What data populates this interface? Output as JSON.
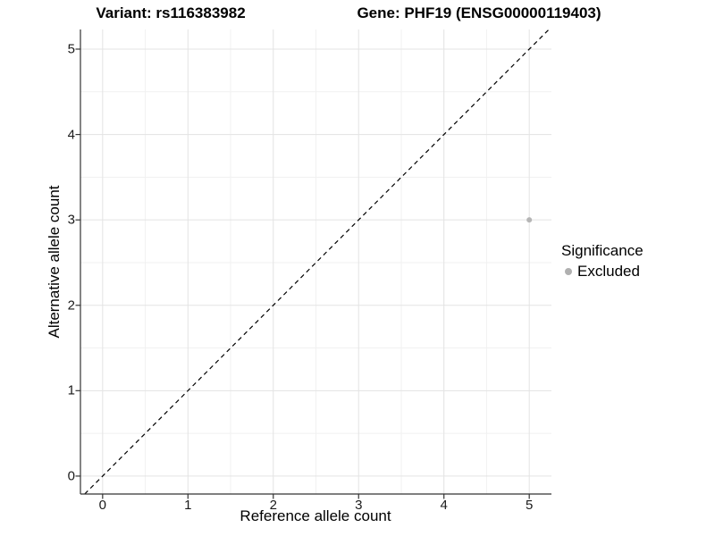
{
  "titles": {
    "variant": "Variant: rs116383982",
    "gene": "Gene: PHF19 (ENSG00000119403)"
  },
  "chart_data": {
    "type": "scatter",
    "xlabel": "Reference allele count",
    "ylabel": "Alternative allele count",
    "xlim": [
      -0.26,
      5.26
    ],
    "ylim": [
      -0.21,
      5.23
    ],
    "xticks": [
      0,
      1,
      2,
      3,
      4,
      5
    ],
    "yticks": [
      0,
      1,
      2,
      3,
      4,
      5
    ],
    "grid": true,
    "minor_grid": true,
    "points": [
      {
        "x": 5,
        "y": 3,
        "series": "Excluded",
        "color": "#b5b5b5"
      }
    ],
    "reference_line": {
      "type": "identity",
      "slope": 1,
      "intercept": 0,
      "style": "dashed",
      "color": "#000000"
    },
    "legend": {
      "title": "Significance",
      "position": "right",
      "items": [
        {
          "label": "Excluded",
          "color": "#b0b0b0"
        }
      ]
    }
  },
  "colors": {
    "background": "#ffffff",
    "grid_major": "#e3e3e3",
    "grid_minor": "#f1f1f1",
    "axis": "#333333",
    "tick_text": "#1a1a1a",
    "title_text": "#000000"
  }
}
